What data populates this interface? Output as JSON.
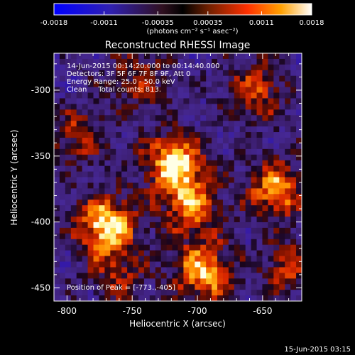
{
  "colorbar": {
    "ticks": [
      "-0.0018",
      "-0.0011",
      "-0.00035",
      "0.00035",
      "0.0011",
      "0.0018"
    ],
    "tick_values": [
      -0.0018,
      -0.0011,
      -0.00035,
      0.00035,
      0.0011,
      0.0018
    ],
    "range": [
      -0.0018,
      0.0018
    ],
    "unit_label": "(photons cm⁻² s⁻¹ asec⁻²)"
  },
  "chart_data": {
    "type": "heatmap",
    "title": "Reconstructed RHESSI Image",
    "xlabel": "Heliocentric X (arcsec)",
    "ylabel": "Heliocentric Y (arcsec)",
    "xlim": [
      -810,
      -620
    ],
    "ylim": [
      -460,
      -272
    ],
    "xticks": [
      -800,
      -750,
      -700,
      -650
    ],
    "yticks": [
      -300,
      -350,
      -400,
      -450
    ],
    "annotations": [
      "14-Jun-2015 00:14:20.000 to 00:14:40.000",
      "Detectors: 3F 5F 6F 7F 8F 9F, Att 0",
      "Energy Range: 25.0 - 50.0 keV",
      "Clean     Total counts: 813."
    ],
    "peak_label": "Position of Peak = [-773.,-405]",
    "peak": [
      -773,
      -405
    ],
    "sources": [
      {
        "x": -770,
        "y": -402,
        "intensity": 1.0
      },
      {
        "x": -718,
        "y": -355,
        "intensity": 0.95
      },
      {
        "x": -705,
        "y": -388,
        "intensity": 0.7
      },
      {
        "x": -695,
        "y": -438,
        "intensity": 0.85
      },
      {
        "x": -655,
        "y": -300,
        "intensity": 0.55
      },
      {
        "x": -640,
        "y": -375,
        "intensity": 0.75
      },
      {
        "x": -790,
        "y": -335,
        "intensity": 0.45
      },
      {
        "x": -745,
        "y": -292,
        "intensity": 0.45
      },
      {
        "x": -760,
        "y": -440,
        "intensity": 0.4
      },
      {
        "x": -628,
        "y": -435,
        "intensity": 0.5
      }
    ]
  },
  "footer": {
    "timestamp": "15-Jun-2015 03:15"
  }
}
